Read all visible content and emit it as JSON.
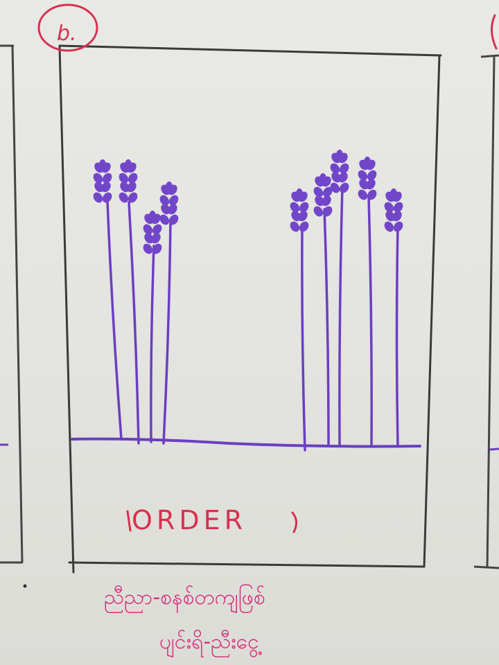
{
  "panel": {
    "label": "b.",
    "caption": "ORDER",
    "note_line1": "ညီညာ-စနစ်တကျဖြစ်",
    "note_line2": "ပျင်းရိ-ညီးငွေ့"
  },
  "colors": {
    "stems": "#6a3fc0",
    "caption": "#d8304e",
    "note": "#d8307a"
  },
  "illustration": {
    "left_group_plants": 4,
    "right_group_plants": 5
  }
}
